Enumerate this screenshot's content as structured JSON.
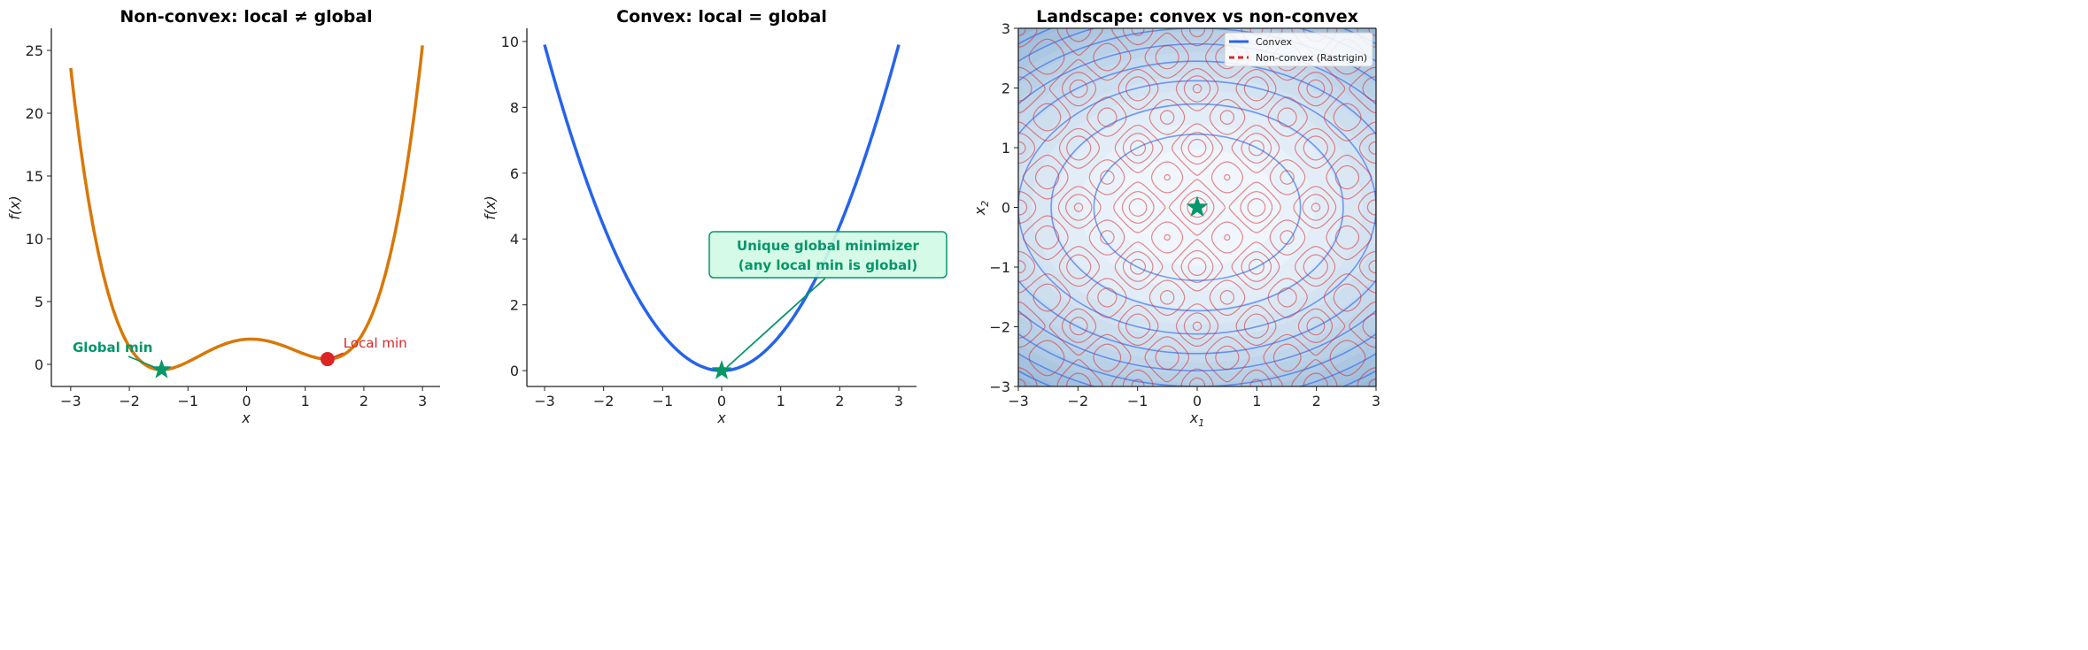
{
  "chart_data": [
    {
      "type": "line",
      "title": "Non-convex: local ≠ global",
      "xlabel": "x",
      "ylabel": "f(x)",
      "xlim": [
        -3.33,
        3.3
      ],
      "ylim": [
        -1.76,
        26.76
      ],
      "xticks": [
        -3,
        -2,
        -1,
        0,
        1,
        2,
        3
      ],
      "yticks": [
        0,
        5,
        10,
        15,
        20,
        25
      ],
      "function": "0.5x^4 - 2x^2 + 0.3x + 2",
      "x_range": [
        -3,
        3
      ],
      "line_color": "#d97706",
      "global_min": {
        "x": -1.45,
        "y": -0.43,
        "label": "Global min",
        "color": "#059669"
      },
      "local_min": {
        "x": 1.38,
        "y": 0.42,
        "label": "Local min",
        "color": "#dc2626"
      },
      "grid": false
    },
    {
      "type": "line",
      "title": "Convex: local = global",
      "xlabel": "x",
      "ylabel": "f(x)",
      "xlim": [
        -3.3,
        3.3
      ],
      "ylim": [
        -0.48,
        10.4
      ],
      "xticks": [
        -3,
        -2,
        -1,
        0,
        1,
        2,
        3
      ],
      "yticks": [
        0,
        2,
        4,
        6,
        8,
        10
      ],
      "function": "1.1x^2",
      "x_range": [
        -3,
        3
      ],
      "line_color": "#2563eb",
      "minimum": {
        "x": 0,
        "y": 0,
        "color": "#059669"
      },
      "annotation": {
        "lines": [
          "Unique global minimizer",
          "(any local min is global)"
        ],
        "x": 1.8,
        "y": 3.2,
        "color": "#059669",
        "box_fill": "#d1fae5"
      },
      "grid": false
    },
    {
      "type": "contour",
      "title": "Landscape: convex vs non-convex",
      "xlabel": "x1",
      "ylabel": "x2",
      "xlim": [
        -3,
        3
      ],
      "ylim": [
        -3,
        3
      ],
      "xticks": [
        -3,
        -2,
        -1,
        0,
        1,
        2,
        3
      ],
      "yticks": [
        -3,
        -2,
        -1,
        0,
        1,
        2,
        3
      ],
      "convex_function": "x1^2 + 2 x2^2",
      "convex_levels": [
        3,
        6,
        9,
        12,
        15,
        18,
        21,
        24,
        27
      ],
      "nonconvex_function": "Rastrigin: 20 + x1^2 - 10cos(2πx1) + x2^2 - 10cos(2πx2)",
      "nonconvex_levels": [
        5,
        12,
        20,
        30,
        40
      ],
      "minimum": {
        "x": 0,
        "y": 0,
        "color": "#059669"
      },
      "legend": {
        "placement": "upper right",
        "entries": [
          {
            "label": "Convex",
            "color": "#2563eb",
            "style": "solid"
          },
          {
            "label": "Non-convex (Rastrigin)",
            "color": "#dc2626",
            "style": "dashed"
          }
        ]
      }
    }
  ]
}
